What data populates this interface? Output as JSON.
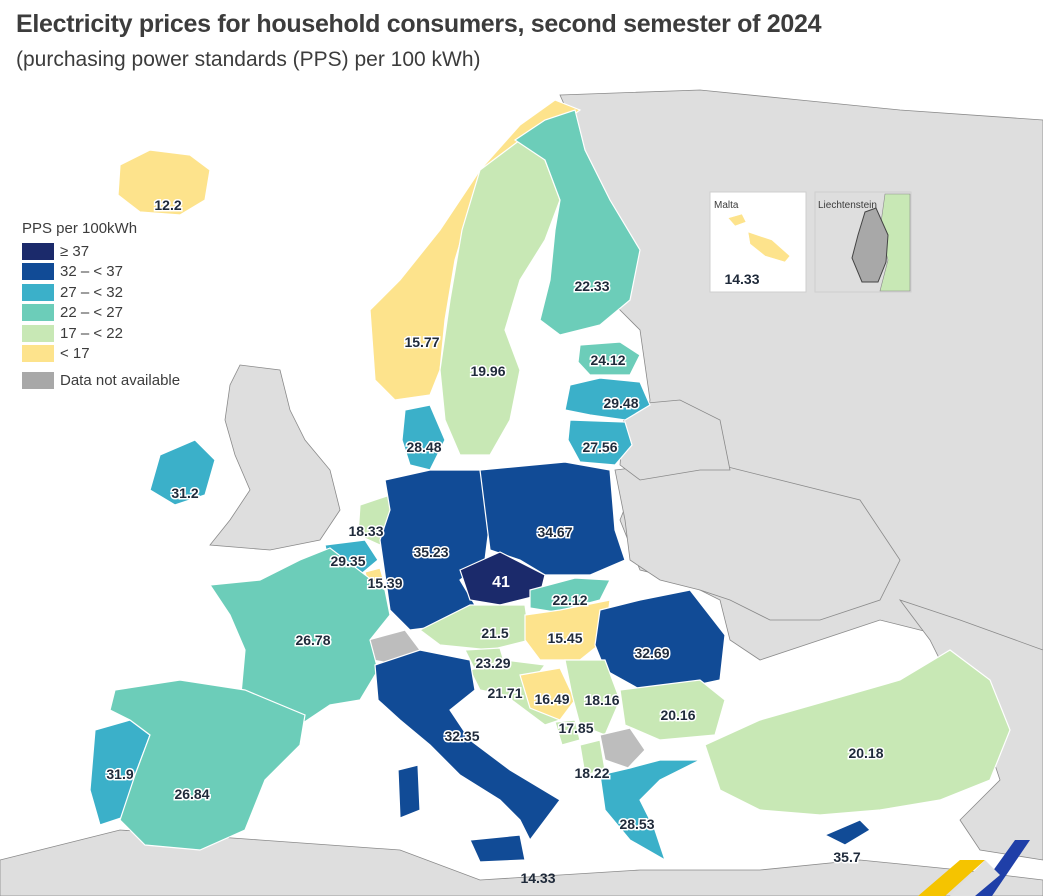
{
  "title": "Electricity prices for household consumers, second semester of 2024",
  "subtitle": "(purchasing power standards (PPS) per 100 kWh)",
  "legend": {
    "title": "PPS per 100kWh",
    "classes": [
      {
        "label": "≥ 37",
        "color": "#1b2a6b"
      },
      {
        "label": "32 – < 37",
        "color": "#114b96"
      },
      {
        "label": "27 – < 32",
        "color": "#3bb0c9"
      },
      {
        "label": "22 – < 27",
        "color": "#6ccdb9"
      },
      {
        "label": "17 – < 22",
        "color": "#c8e8b5"
      },
      {
        "label": "< 17",
        "color": "#fde38c"
      }
    ],
    "nodata": {
      "label": "Data not available",
      "color": "#a8a8a8"
    }
  },
  "insets": {
    "malta": {
      "title": "Malta",
      "value": "14.33"
    },
    "liechtenstein": {
      "title": "Liechtenstein"
    }
  },
  "countries": [
    {
      "name": "Iceland",
      "value": "12.2"
    },
    {
      "name": "Norway",
      "value": "15.77"
    },
    {
      "name": "Sweden",
      "value": "19.96"
    },
    {
      "name": "Finland",
      "value": "22.33"
    },
    {
      "name": "Estonia",
      "value": "24.12"
    },
    {
      "name": "Latvia",
      "value": "29.48"
    },
    {
      "name": "Lithuania",
      "value": "27.56"
    },
    {
      "name": "Denmark",
      "value": "28.48"
    },
    {
      "name": "Ireland",
      "value": "31.2"
    },
    {
      "name": "Netherlands",
      "value": "18.33"
    },
    {
      "name": "Belgium",
      "value": "29.35"
    },
    {
      "name": "Luxembourg",
      "value": "15.39"
    },
    {
      "name": "Germany",
      "value": "35.23"
    },
    {
      "name": "Poland",
      "value": "34.67"
    },
    {
      "name": "Czechia",
      "value": "41"
    },
    {
      "name": "Slovakia",
      "value": "22.12"
    },
    {
      "name": "Austria",
      "value": "21.5"
    },
    {
      "name": "Hungary",
      "value": "15.45"
    },
    {
      "name": "Romania",
      "value": "32.69"
    },
    {
      "name": "France",
      "value": "26.78"
    },
    {
      "name": "Slovenia",
      "value": "23.29"
    },
    {
      "name": "Croatia",
      "value": "21.71"
    },
    {
      "name": "Bosnia and Herzegovina",
      "value": "16.49"
    },
    {
      "name": "Serbia",
      "value": "18.16"
    },
    {
      "name": "Montenegro",
      "value": "17.85"
    },
    {
      "name": "North Macedonia",
      "value": "18.22"
    },
    {
      "name": "Bulgaria",
      "value": "20.16"
    },
    {
      "name": "Türkiye",
      "value": "20.18"
    },
    {
      "name": "Italy",
      "value": "32.35"
    },
    {
      "name": "Portugal",
      "value": "31.9"
    },
    {
      "name": "Spain",
      "value": "26.84"
    },
    {
      "name": "Greece",
      "value": "28.53"
    },
    {
      "name": "Cyprus",
      "value": "35.7"
    },
    {
      "name": "Malta",
      "value": "14.33"
    }
  ]
}
